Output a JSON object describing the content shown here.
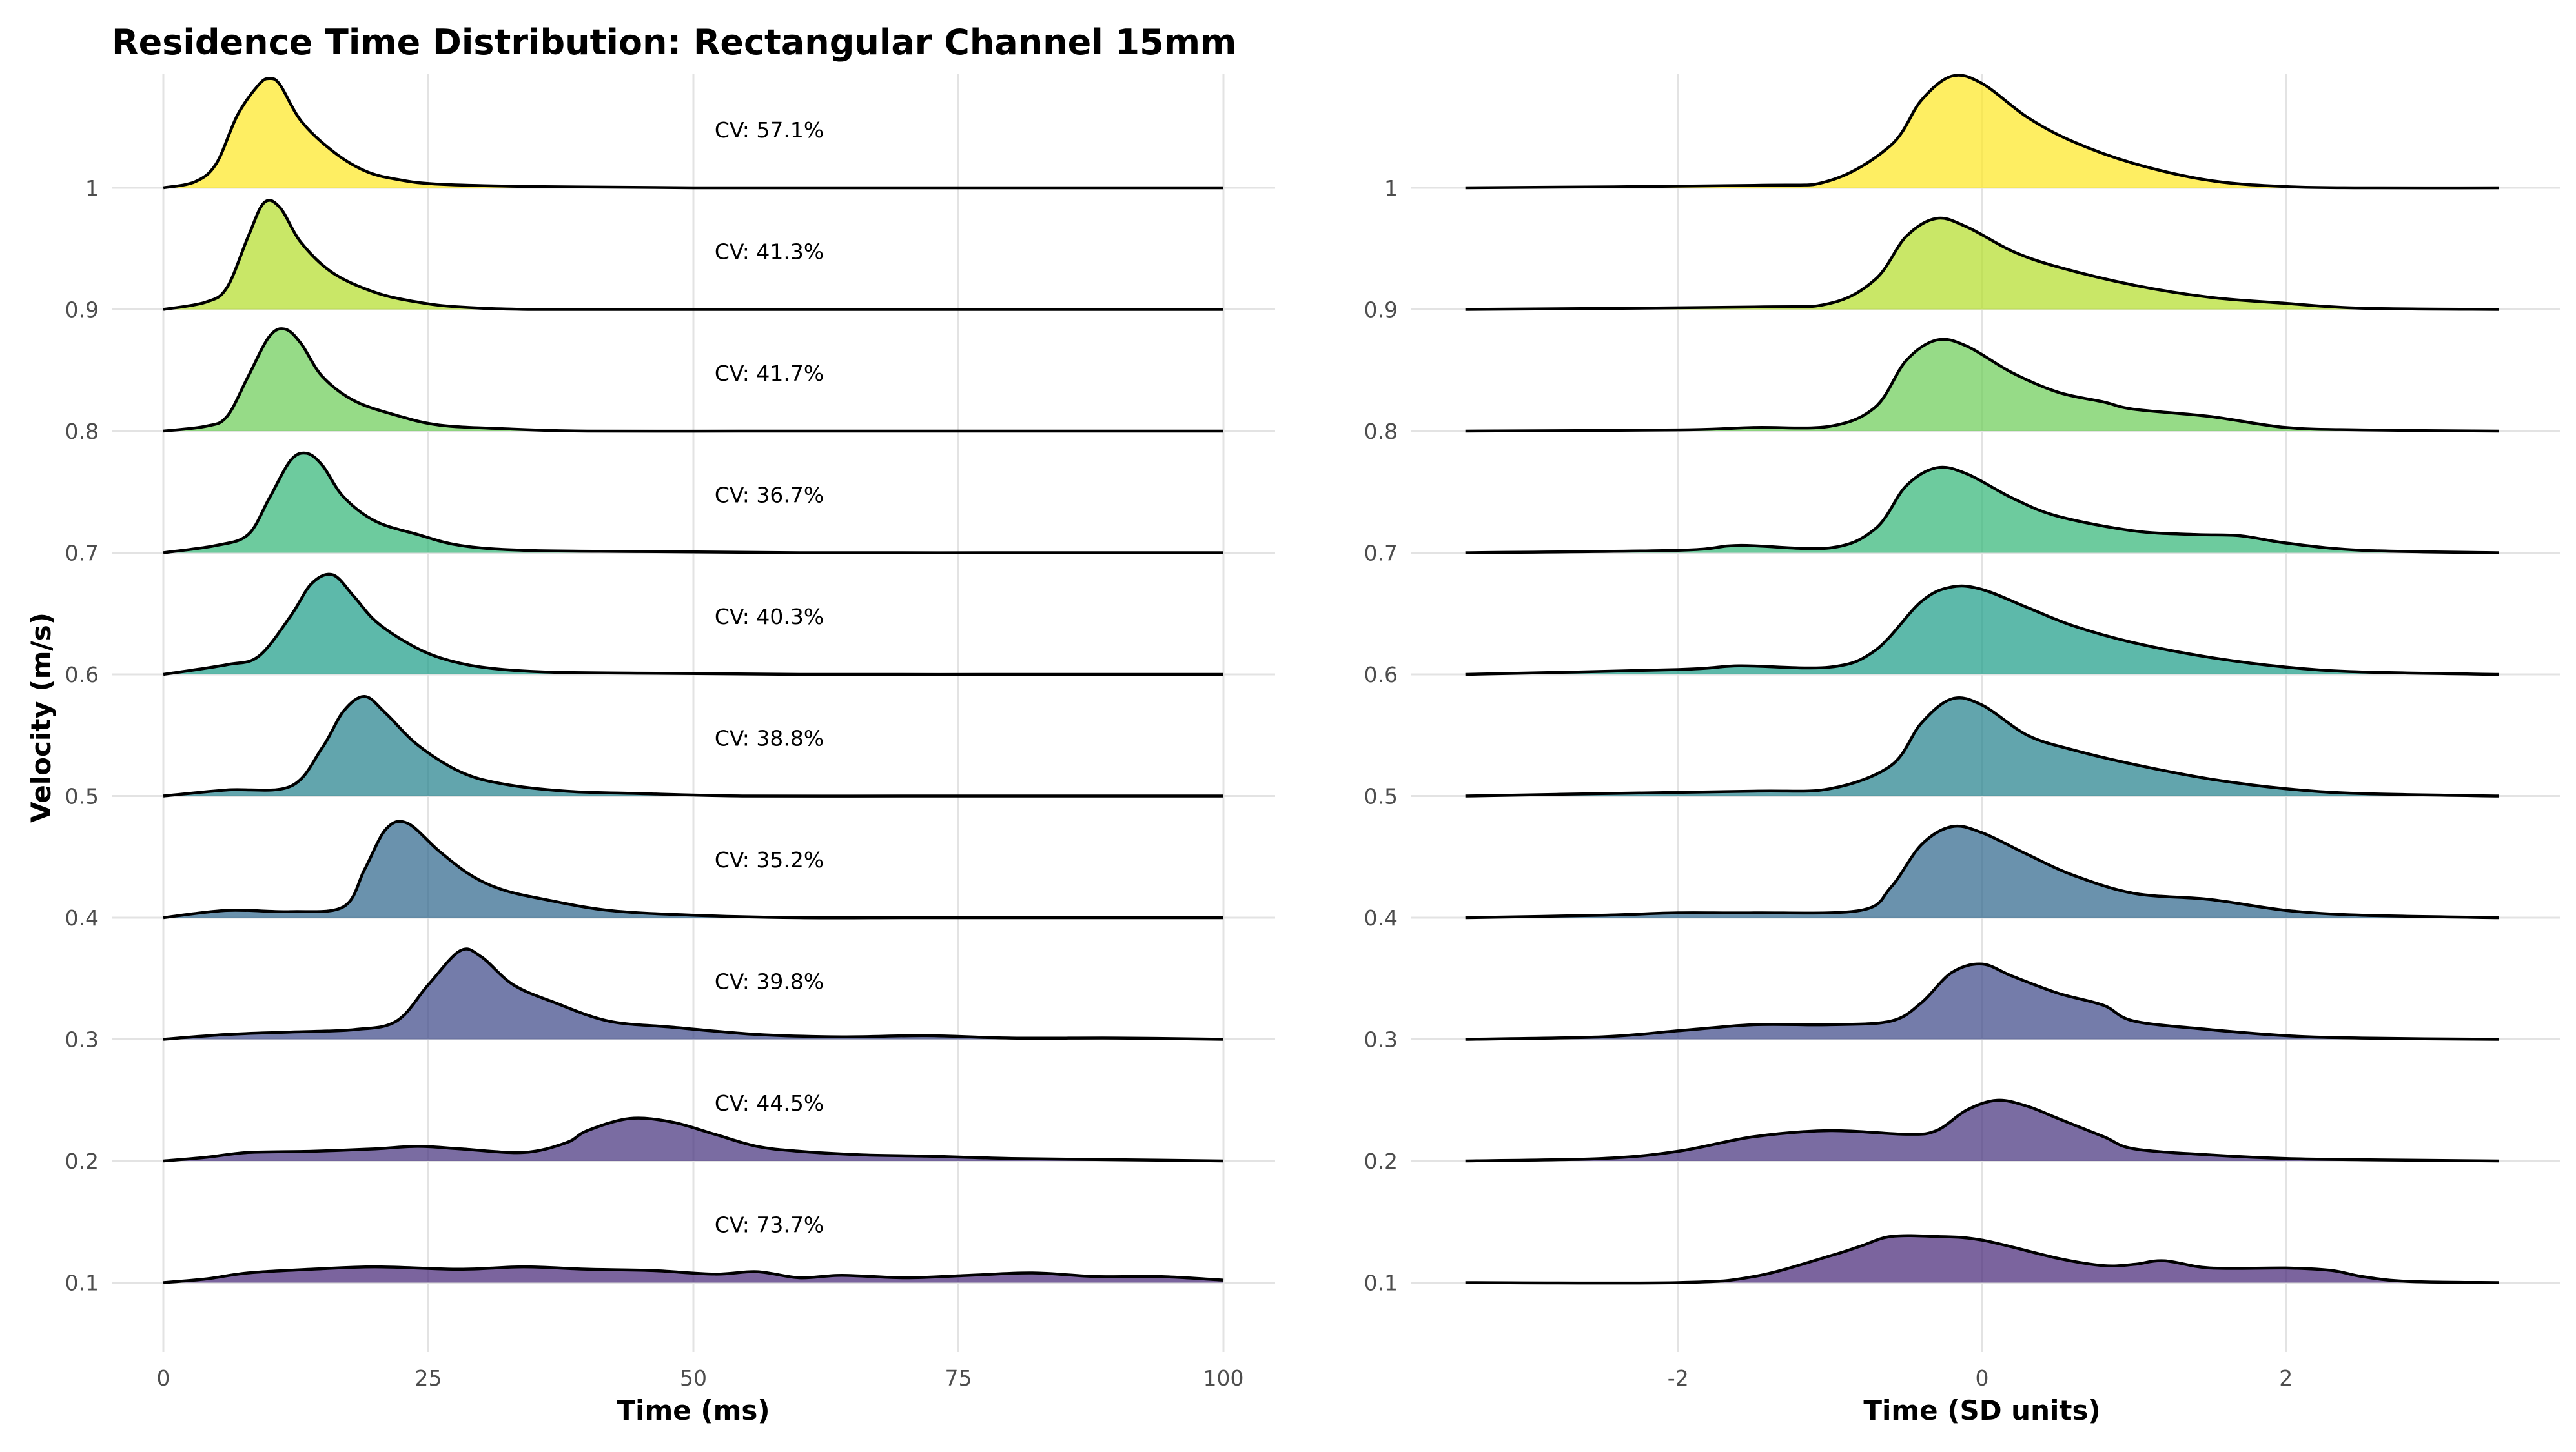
{
  "chart_data": {
    "type": "area",
    "title": "Residence Time Distribution: Rectangular Channel 15mm",
    "ylabel": "Velocity (m/s)",
    "categories": [
      "0.1",
      "0.2",
      "0.3",
      "0.4",
      "0.5",
      "0.6",
      "0.7",
      "0.8",
      "0.9",
      "1"
    ],
    "grid": true,
    "legend": "none",
    "colors": [
      "#482878",
      "#46337E",
      "#3E4A89",
      "#31688E",
      "#26828E",
      "#1F9E89",
      "#35B779",
      "#6DCD59",
      "#B4DE2C",
      "#FDE725"
    ],
    "panels": [
      {
        "xlabel": "Time (ms)",
        "xlim": [
          0,
          100
        ],
        "xticks": [
          0,
          25,
          50,
          75,
          100
        ],
        "xtick_labels": [
          "0",
          "25",
          "50",
          "75",
          "100"
        ],
        "annotations": [
          "CV: 73.7%",
          "CV: 44.5%",
          "CV: 39.8%",
          "CV: 35.2%",
          "CV: 38.8%",
          "CV: 40.3%",
          "CV: 36.7%",
          "CV: 41.7%",
          "CV: 41.3%",
          "CV: 57.1%"
        ],
        "annotation_x": 52,
        "series": [
          {
            "name": "0.1",
            "x": [
              0,
              4,
              8,
              14,
              20,
              28,
              34,
              40,
              46,
              52,
              56,
              60,
              64,
              70,
              76,
              82,
              88,
              94,
              100
            ],
            "y": [
              0.0,
              0.03,
              0.08,
              0.11,
              0.13,
              0.11,
              0.13,
              0.11,
              0.1,
              0.07,
              0.09,
              0.04,
              0.06,
              0.04,
              0.06,
              0.08,
              0.05,
              0.05,
              0.02
            ]
          },
          {
            "name": "0.2",
            "x": [
              0,
              4,
              8,
              14,
              20,
              24,
              28,
              34,
              38,
              40,
              44,
              48,
              52,
              56,
              60,
              66,
              72,
              80,
              90,
              100
            ],
            "y": [
              0.0,
              0.03,
              0.07,
              0.08,
              0.1,
              0.12,
              0.1,
              0.07,
              0.15,
              0.25,
              0.35,
              0.32,
              0.22,
              0.12,
              0.08,
              0.05,
              0.04,
              0.02,
              0.01,
              0.0
            ]
          },
          {
            "name": "0.3",
            "x": [
              0,
              6,
              12,
              18,
              22,
              25,
              28,
              30,
              33,
              37,
              42,
              48,
              56,
              64,
              72,
              80,
              90,
              100
            ],
            "y": [
              0.0,
              0.04,
              0.06,
              0.08,
              0.15,
              0.45,
              0.73,
              0.68,
              0.45,
              0.3,
              0.15,
              0.1,
              0.04,
              0.02,
              0.03,
              0.01,
              0.01,
              0.0
            ]
          },
          {
            "name": "0.4",
            "x": [
              0,
              6,
              12,
              17,
              19,
              21,
              23,
              26,
              29,
              32,
              36,
              42,
              50,
              60,
              70,
              80,
              100
            ],
            "y": [
              0.0,
              0.06,
              0.05,
              0.09,
              0.4,
              0.73,
              0.78,
              0.55,
              0.35,
              0.23,
              0.15,
              0.06,
              0.02,
              0.0,
              0.0,
              0.0,
              0.0
            ]
          },
          {
            "name": "0.5",
            "x": [
              0,
              6,
              12,
              15,
              17,
              19,
              21,
              24,
              28,
              32,
              38,
              45,
              55,
              70,
              85,
              100
            ],
            "y": [
              0.0,
              0.05,
              0.08,
              0.4,
              0.7,
              0.82,
              0.68,
              0.42,
              0.2,
              0.1,
              0.04,
              0.02,
              0.0,
              0.0,
              0.0,
              0.0
            ]
          },
          {
            "name": "0.6",
            "x": [
              0,
              6,
              9,
              12,
              14,
              16,
              18,
              20,
              23,
              26,
              30,
              36,
              45,
              60,
              80,
              100
            ],
            "y": [
              0.0,
              0.08,
              0.15,
              0.48,
              0.75,
              0.82,
              0.64,
              0.44,
              0.26,
              0.14,
              0.06,
              0.02,
              0.01,
              0.0,
              0.0,
              0.0
            ]
          },
          {
            "name": "0.7",
            "x": [
              0,
              5,
              8,
              10,
              12,
              13.5,
              15,
              17,
              20,
              24,
              28,
              34,
              45,
              60,
              80,
              100
            ],
            "y": [
              0.0,
              0.06,
              0.15,
              0.45,
              0.76,
              0.82,
              0.72,
              0.46,
              0.26,
              0.15,
              0.06,
              0.02,
              0.01,
              0.0,
              0.0,
              0.0
            ]
          },
          {
            "name": "0.8",
            "x": [
              0,
              4,
              6,
              8,
              10,
              11.5,
              13,
              15,
              18,
              22,
              26,
              32,
              40,
              55,
              70,
              100
            ],
            "y": [
              0.0,
              0.04,
              0.12,
              0.45,
              0.78,
              0.84,
              0.72,
              0.45,
              0.25,
              0.13,
              0.05,
              0.02,
              0.0,
              0.0,
              0.0,
              0.0
            ]
          },
          {
            "name": "0.9",
            "x": [
              0,
              4,
              6,
              8,
              9.5,
              11,
              13,
              16,
              20,
              24,
              28,
              35,
              50,
              70,
              100
            ],
            "y": [
              0.0,
              0.06,
              0.18,
              0.6,
              0.88,
              0.84,
              0.55,
              0.3,
              0.14,
              0.06,
              0.02,
              0.0,
              0.0,
              0.0,
              0.0
            ]
          },
          {
            "name": "1",
            "x": [
              0,
              3,
              5,
              7,
              9,
              10,
              11,
              13,
              16,
              19,
              22,
              26,
              35,
              50,
              70,
              100
            ],
            "y": [
              0.0,
              0.05,
              0.2,
              0.6,
              0.85,
              0.9,
              0.85,
              0.55,
              0.3,
              0.14,
              0.07,
              0.03,
              0.01,
              0.0,
              0.0,
              0.0
            ]
          }
        ]
      },
      {
        "xlabel": "Time (SD units)",
        "xlim": [
          -3.42,
          3.42
        ],
        "xticks": [
          -2,
          0,
          2
        ],
        "xtick_labels": [
          "-2",
          "0",
          "2"
        ],
        "series": [
          {
            "name": "0.1",
            "x": [
              -3.4,
              -2.0,
              -1.5,
              -1.0,
              -0.8,
              -0.6,
              -0.3,
              0.0,
              0.5,
              0.8,
              1.0,
              1.2,
              1.5,
              2.0,
              2.3,
              2.5,
              2.8,
              3.4
            ],
            "y": [
              0.0,
              0.0,
              0.05,
              0.22,
              0.3,
              0.38,
              0.38,
              0.35,
              0.2,
              0.14,
              0.15,
              0.18,
              0.12,
              0.12,
              0.1,
              0.05,
              0.01,
              0.0
            ]
          },
          {
            "name": "0.2",
            "x": [
              -3.4,
              -2.5,
              -2.0,
              -1.5,
              -1.0,
              -0.5,
              -0.3,
              -0.1,
              0.1,
              0.3,
              0.5,
              0.8,
              1.0,
              1.5,
              2.0,
              2.5,
              3.4
            ],
            "y": [
              0.0,
              0.02,
              0.08,
              0.2,
              0.25,
              0.22,
              0.25,
              0.42,
              0.5,
              0.45,
              0.35,
              0.2,
              0.1,
              0.05,
              0.02,
              0.01,
              0.0
            ]
          },
          {
            "name": "0.3",
            "x": [
              -3.4,
              -2.5,
              -2.0,
              -1.5,
              -1.0,
              -0.6,
              -0.4,
              -0.2,
              0.0,
              0.2,
              0.5,
              0.8,
              1.0,
              1.5,
              2.0,
              2.5,
              3.4
            ],
            "y": [
              0.0,
              0.02,
              0.07,
              0.12,
              0.12,
              0.15,
              0.3,
              0.55,
              0.62,
              0.52,
              0.38,
              0.28,
              0.15,
              0.08,
              0.03,
              0.01,
              0.0
            ]
          },
          {
            "name": "0.4",
            "x": [
              -3.4,
              -2.5,
              -2.0,
              -1.5,
              -0.8,
              -0.6,
              -0.4,
              -0.2,
              0.0,
              0.3,
              0.6,
              1.0,
              1.5,
              2.0,
              2.5,
              3.4
            ],
            "y": [
              0.0,
              0.02,
              0.04,
              0.04,
              0.06,
              0.25,
              0.6,
              0.75,
              0.7,
              0.52,
              0.35,
              0.2,
              0.15,
              0.06,
              0.02,
              0.0
            ]
          },
          {
            "name": "0.5",
            "x": [
              -3.4,
              -2.5,
              -1.5,
              -1.0,
              -0.6,
              -0.4,
              -0.2,
              0.0,
              0.3,
              0.6,
              1.0,
              1.5,
              2.0,
              2.5,
              3.4
            ],
            "y": [
              0.0,
              0.02,
              0.04,
              0.06,
              0.25,
              0.6,
              0.8,
              0.75,
              0.5,
              0.38,
              0.26,
              0.14,
              0.06,
              0.02,
              0.0
            ]
          },
          {
            "name": "0.6",
            "x": [
              -3.4,
              -2.0,
              -1.6,
              -1.0,
              -0.7,
              -0.4,
              -0.2,
              0.0,
              0.3,
              0.6,
              1.0,
              1.5,
              2.0,
              2.5,
              3.4
            ],
            "y": [
              0.0,
              0.04,
              0.07,
              0.06,
              0.2,
              0.6,
              0.72,
              0.7,
              0.55,
              0.4,
              0.26,
              0.14,
              0.06,
              0.02,
              0.0
            ]
          },
          {
            "name": "0.7",
            "x": [
              -3.4,
              -2.0,
              -1.6,
              -1.0,
              -0.7,
              -0.5,
              -0.3,
              -0.1,
              0.2,
              0.5,
              1.0,
              1.4,
              1.7,
              2.0,
              2.5,
              3.4
            ],
            "y": [
              0.0,
              0.02,
              0.06,
              0.04,
              0.2,
              0.55,
              0.7,
              0.65,
              0.45,
              0.3,
              0.18,
              0.15,
              0.14,
              0.08,
              0.02,
              0.0
            ]
          },
          {
            "name": "0.8",
            "x": [
              -3.4,
              -2.0,
              -1.5,
              -1.0,
              -0.7,
              -0.5,
              -0.3,
              -0.1,
              0.2,
              0.5,
              0.8,
              1.0,
              1.5,
              2.0,
              2.5,
              3.4
            ],
            "y": [
              0.0,
              0.01,
              0.03,
              0.04,
              0.2,
              0.58,
              0.75,
              0.7,
              0.48,
              0.32,
              0.24,
              0.18,
              0.12,
              0.03,
              0.01,
              0.0
            ]
          },
          {
            "name": "0.9",
            "x": [
              -3.4,
              -1.5,
              -1.0,
              -0.7,
              -0.5,
              -0.3,
              -0.1,
              0.2,
              0.5,
              1.0,
              1.5,
              2.0,
              2.5,
              3.4
            ],
            "y": [
              0.0,
              0.02,
              0.05,
              0.25,
              0.6,
              0.75,
              0.68,
              0.48,
              0.35,
              0.2,
              0.1,
              0.05,
              0.01,
              0.0
            ]
          },
          {
            "name": "1",
            "x": [
              -3.4,
              -1.5,
              -1.0,
              -0.6,
              -0.4,
              -0.2,
              0.0,
              0.3,
              0.6,
              1.0,
              1.5,
              2.0,
              2.5,
              3.4
            ],
            "y": [
              0.0,
              0.02,
              0.06,
              0.35,
              0.72,
              0.92,
              0.86,
              0.58,
              0.38,
              0.2,
              0.06,
              0.01,
              0.0,
              0.0
            ]
          }
        ]
      }
    ]
  }
}
